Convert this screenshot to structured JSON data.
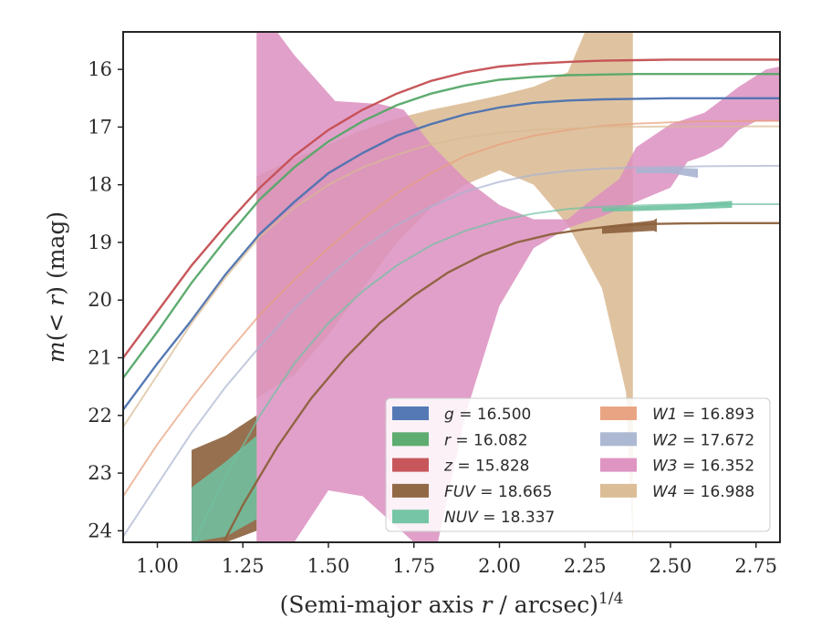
{
  "chart_data": {
    "type": "line",
    "xlabel": "(Semi-major axis r / arcsec)^1/4",
    "ylabel": "m(<r) (mag)",
    "xlim": [
      0.9,
      2.82
    ],
    "ylim": [
      24.2,
      15.35
    ],
    "y_inverted": true,
    "grid": false,
    "legend_position": "lower-right",
    "xticks": [
      "1.00",
      "1.25",
      "1.50",
      "1.75",
      "2.00",
      "2.25",
      "2.50",
      "2.75"
    ],
    "xtick_values": [
      1.0,
      1.25,
      1.5,
      1.75,
      2.0,
      2.25,
      2.5,
      2.75
    ],
    "yticks": [
      "16",
      "17",
      "18",
      "19",
      "20",
      "21",
      "22",
      "23",
      "24"
    ],
    "ytick_values": [
      16,
      17,
      18,
      19,
      20,
      21,
      22,
      23,
      24
    ],
    "series": [
      {
        "name": "g = 16.500",
        "label_var": "g",
        "label_val": "16.500",
        "color": "#4c72b0",
        "x": [
          0.9,
          1.0,
          1.1,
          1.2,
          1.3,
          1.4,
          1.5,
          1.6,
          1.7,
          1.8,
          1.9,
          2.0,
          2.1,
          2.2,
          2.3,
          2.4,
          2.5,
          2.6,
          2.7,
          2.82
        ],
        "y": [
          21.9,
          21.1,
          20.35,
          19.55,
          18.85,
          18.3,
          17.8,
          17.45,
          17.15,
          16.95,
          16.78,
          16.66,
          16.58,
          16.54,
          16.52,
          16.51,
          16.5,
          16.5,
          16.5,
          16.5
        ]
      },
      {
        "name": "r = 16.082",
        "label_var": "r",
        "label_val": "16.082",
        "color": "#55a868",
        "x": [
          0.9,
          1.0,
          1.1,
          1.2,
          1.3,
          1.4,
          1.5,
          1.6,
          1.7,
          1.8,
          1.9,
          2.0,
          2.1,
          2.2,
          2.3,
          2.4,
          2.5,
          2.6,
          2.7,
          2.82
        ],
        "y": [
          21.35,
          20.55,
          19.7,
          18.95,
          18.25,
          17.7,
          17.25,
          16.9,
          16.62,
          16.42,
          16.28,
          16.18,
          16.13,
          16.1,
          16.09,
          16.08,
          16.08,
          16.08,
          16.08,
          16.08
        ]
      },
      {
        "name": "z = 15.828",
        "label_var": "z",
        "label_val": "15.828",
        "color": "#c44e52",
        "x": [
          0.9,
          1.0,
          1.1,
          1.2,
          1.3,
          1.4,
          1.5,
          1.6,
          1.7,
          1.8,
          1.9,
          2.0,
          2.1,
          2.2,
          2.3,
          2.4,
          2.5,
          2.6,
          2.7,
          2.82
        ],
        "y": [
          21.0,
          20.2,
          19.4,
          18.7,
          18.05,
          17.5,
          17.05,
          16.7,
          16.42,
          16.2,
          16.05,
          15.95,
          15.9,
          15.87,
          15.85,
          15.84,
          15.83,
          15.83,
          15.83,
          15.83
        ]
      },
      {
        "name": "FUV = 18.665",
        "label_var": "FUV",
        "label_val": "18.665",
        "color": "#8c613c",
        "x": [
          1.15,
          1.25,
          1.35,
          1.45,
          1.55,
          1.65,
          1.75,
          1.85,
          1.95,
          2.05,
          2.15,
          2.25,
          2.35,
          2.45,
          2.55,
          2.65,
          2.82
        ],
        "y": [
          24.7,
          23.55,
          22.55,
          21.7,
          21.0,
          20.4,
          19.92,
          19.52,
          19.22,
          19.0,
          18.86,
          18.77,
          18.71,
          18.68,
          18.67,
          18.665,
          18.665
        ]
      },
      {
        "name": "NUV = 18.337",
        "label_var": "NUV",
        "label_val": "18.337",
        "color": "#6fc2a2",
        "x": [
          1.1,
          1.2,
          1.3,
          1.4,
          1.5,
          1.6,
          1.7,
          1.8,
          1.9,
          2.0,
          2.1,
          2.2,
          2.3,
          2.4,
          2.5,
          2.6,
          2.7,
          2.82
        ],
        "y": [
          24.3,
          23.05,
          22.0,
          21.1,
          20.4,
          19.85,
          19.4,
          19.05,
          18.8,
          18.62,
          18.5,
          18.42,
          18.38,
          18.36,
          18.345,
          18.34,
          18.337,
          18.337
        ]
      },
      {
        "name": "W1 = 16.893",
        "label_var": "W1",
        "label_val": "16.893",
        "color": "#e8a07c",
        "x": [
          0.9,
          1.0,
          1.1,
          1.2,
          1.3,
          1.4,
          1.5,
          1.6,
          1.7,
          1.8,
          1.9,
          2.0,
          2.1,
          2.2,
          2.3,
          2.4,
          2.5,
          2.6,
          2.7,
          2.82
        ],
        "y": [
          23.4,
          22.5,
          21.7,
          20.95,
          20.25,
          19.65,
          19.1,
          18.6,
          18.15,
          17.8,
          17.5,
          17.3,
          17.15,
          17.05,
          16.98,
          16.94,
          16.92,
          16.9,
          16.895,
          16.893
        ]
      },
      {
        "name": "W2 = 17.672",
        "label_var": "W2",
        "label_val": "17.672",
        "color": "#a9b4d0",
        "x": [
          0.9,
          1.0,
          1.1,
          1.2,
          1.3,
          1.4,
          1.5,
          1.6,
          1.7,
          1.8,
          1.9,
          2.0,
          2.1,
          2.2,
          2.3,
          2.4,
          2.5,
          2.6,
          2.7,
          2.82
        ],
        "y": [
          24.1,
          23.2,
          22.3,
          21.5,
          20.8,
          20.15,
          19.6,
          19.1,
          18.7,
          18.38,
          18.12,
          17.95,
          17.83,
          17.76,
          17.72,
          17.7,
          17.69,
          17.68,
          17.675,
          17.672
        ]
      },
      {
        "name": "W3 = 16.352",
        "label_var": "W3",
        "label_val": "16.352",
        "color": "#dc8fbf"
      },
      {
        "name": "W4 = 16.988",
        "label_var": "W4",
        "label_val": "16.988",
        "color": "#d9b991",
        "x": [
          0.9,
          1.0,
          1.1,
          1.2,
          1.3,
          1.4,
          1.5,
          1.6,
          1.7,
          1.8,
          1.9,
          2.0,
          2.1,
          2.2,
          2.3,
          2.4,
          2.5,
          2.6,
          2.7,
          2.82
        ],
        "y": [
          22.2,
          21.3,
          20.4,
          19.6,
          18.9,
          18.4,
          18.0,
          17.7,
          17.48,
          17.3,
          17.18,
          17.1,
          17.05,
          17.02,
          17.0,
          16.995,
          16.99,
          16.99,
          16.988,
          16.988
        ]
      }
    ],
    "bands": [
      {
        "series": "W4",
        "color": "#d9b991",
        "opacity": 0.85,
        "upper": [
          [
            1.29,
            17.85
          ],
          [
            1.4,
            17.55
          ],
          [
            1.5,
            17.3
          ],
          [
            1.6,
            17.05
          ],
          [
            1.7,
            16.85
          ],
          [
            1.8,
            16.7
          ],
          [
            1.9,
            16.58
          ],
          [
            2.0,
            16.45
          ],
          [
            2.1,
            16.3
          ],
          [
            2.2,
            16.05
          ],
          [
            2.25,
            15.35
          ],
          [
            2.39,
            15.35
          ]
        ],
        "lower": [
          [
            1.29,
            21.7
          ],
          [
            1.4,
            21.3
          ],
          [
            1.5,
            20.6
          ],
          [
            1.6,
            19.8
          ],
          [
            1.7,
            19.0
          ],
          [
            1.8,
            18.4
          ],
          [
            1.9,
            18.0
          ],
          [
            2.0,
            17.75
          ],
          [
            2.1,
            18.0
          ],
          [
            2.2,
            18.7
          ],
          [
            2.3,
            19.8
          ],
          [
            2.37,
            21.6
          ],
          [
            2.39,
            24.2
          ]
        ]
      },
      {
        "series": "W3",
        "color": "#dc8fbf",
        "opacity": 0.85,
        "upper": [
          [
            1.29,
            15.35
          ],
          [
            1.35,
            15.35
          ],
          [
            1.4,
            15.75
          ],
          [
            1.52,
            16.55
          ],
          [
            1.65,
            16.6
          ],
          [
            1.72,
            16.7
          ],
          [
            1.8,
            17.3
          ],
          [
            1.9,
            17.9
          ],
          [
            2.0,
            18.35
          ],
          [
            2.1,
            18.6
          ],
          [
            2.2,
            18.6
          ],
          [
            2.25,
            18.35
          ],
          [
            2.35,
            17.9
          ],
          [
            2.4,
            17.35
          ],
          [
            2.5,
            16.95
          ],
          [
            2.6,
            16.75
          ],
          [
            2.7,
            16.3
          ],
          [
            2.78,
            16.0
          ],
          [
            2.82,
            15.95
          ]
        ],
        "lower": [
          [
            1.29,
            24.2
          ],
          [
            1.4,
            24.2
          ],
          [
            1.5,
            23.3
          ],
          [
            1.6,
            23.4
          ],
          [
            1.75,
            24.2
          ],
          [
            1.82,
            24.2
          ],
          [
            1.9,
            22.0
          ],
          [
            2.0,
            20.1
          ],
          [
            2.1,
            19.1
          ],
          [
            2.2,
            18.75
          ],
          [
            2.3,
            18.55
          ],
          [
            2.4,
            18.3
          ],
          [
            2.5,
            18.05
          ],
          [
            2.55,
            17.6
          ],
          [
            2.6,
            17.5
          ],
          [
            2.65,
            17.35
          ],
          [
            2.7,
            17.05
          ],
          [
            2.75,
            16.9
          ],
          [
            2.82,
            16.9
          ]
        ]
      },
      {
        "series": "FUV",
        "color": "#8c613c",
        "opacity": 0.9,
        "upper": [
          [
            1.1,
            22.6
          ],
          [
            1.2,
            22.35
          ],
          [
            1.29,
            22.0
          ]
        ],
        "lower": [
          [
            1.1,
            24.2
          ],
          [
            1.2,
            24.2
          ],
          [
            1.29,
            24.0
          ]
        ]
      },
      {
        "series": "NUV",
        "color": "#6fc2a2",
        "opacity": 0.85,
        "upper": [
          [
            1.1,
            23.25
          ],
          [
            1.2,
            22.8
          ],
          [
            1.29,
            22.35
          ]
        ],
        "lower": [
          [
            1.1,
            24.2
          ],
          [
            1.2,
            24.1
          ],
          [
            1.29,
            23.8
          ]
        ]
      },
      {
        "series": "FUV",
        "color": "#8c613c",
        "opacity": 0.9,
        "upper": [
          [
            2.3,
            18.72
          ],
          [
            2.45,
            18.62
          ],
          [
            2.46,
            18.58
          ]
        ],
        "lower": [
          [
            2.3,
            18.85
          ],
          [
            2.45,
            18.8
          ],
          [
            2.46,
            18.82
          ]
        ]
      },
      {
        "series": "NUV",
        "color": "#6fc2a2",
        "opacity": 0.9,
        "upper": [
          [
            2.3,
            18.4
          ],
          [
            2.5,
            18.35
          ],
          [
            2.68,
            18.28
          ]
        ],
        "lower": [
          [
            2.3,
            18.47
          ],
          [
            2.5,
            18.44
          ],
          [
            2.68,
            18.4
          ]
        ]
      },
      {
        "series": "W2",
        "color": "#a9b4d0",
        "opacity": 0.9,
        "upper": [
          [
            2.4,
            17.72
          ],
          [
            2.5,
            17.7
          ],
          [
            2.58,
            17.72
          ]
        ],
        "lower": [
          [
            2.4,
            17.8
          ],
          [
            2.5,
            17.8
          ],
          [
            2.58,
            17.88
          ]
        ]
      }
    ]
  }
}
